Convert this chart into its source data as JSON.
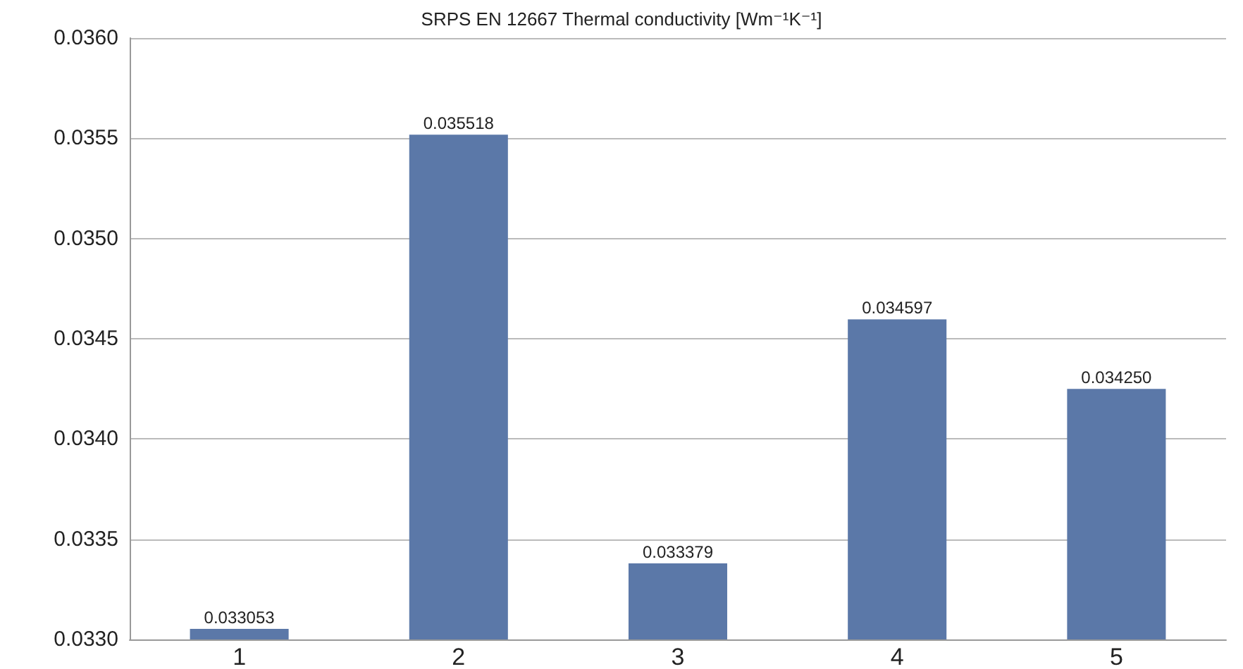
{
  "chart_data": {
    "type": "bar",
    "title": "SRPS EN 12667 Thermal conductivity [Wm⁻¹K⁻¹]",
    "categories": [
      "1",
      "2",
      "3",
      "4",
      "5"
    ],
    "values": [
      0.033053,
      0.035518,
      0.033379,
      0.034597,
      0.03425
    ],
    "value_labels": [
      "0.033053",
      "0.035518",
      "0.033379",
      "0.034597",
      "0.034250"
    ],
    "color": "#5b78a8",
    "ylim": [
      0.033,
      0.036
    ],
    "yticks": [
      {
        "value": 0.033,
        "label": "0.0330"
      },
      {
        "value": 0.0335,
        "label": "0.0335"
      },
      {
        "value": 0.034,
        "label": "0.0340"
      },
      {
        "value": 0.0345,
        "label": "0.0345"
      },
      {
        "value": 0.035,
        "label": "0.0350"
      },
      {
        "value": 0.0355,
        "label": "0.0355"
      },
      {
        "value": 0.036,
        "label": "0.0360"
      }
    ],
    "grid": "y"
  }
}
